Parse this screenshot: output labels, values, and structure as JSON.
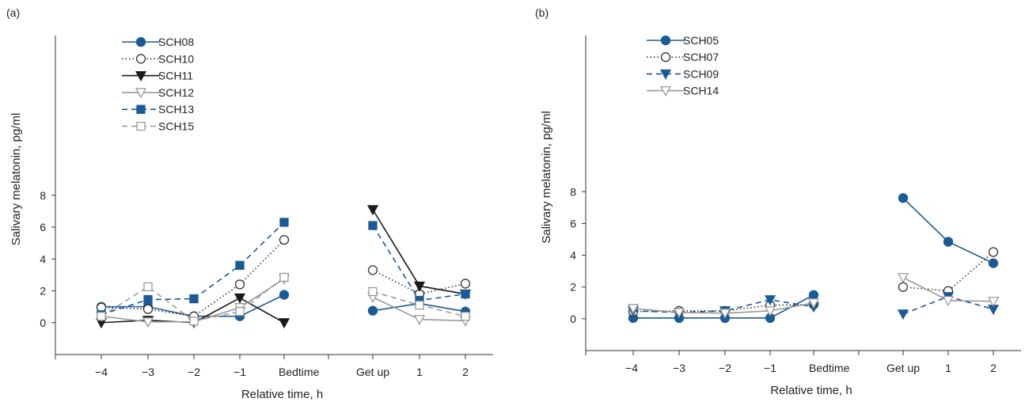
{
  "panels": [
    {
      "label": "(a)",
      "chart_data": {
        "type": "line",
        "xlabel": "Relative time, h",
        "ylabel": "Salivary melatonin, pg/ml",
        "ylim": [
          -2,
          8
        ],
        "yticks": [
          0,
          2,
          4,
          6,
          8
        ],
        "categories": [
          "−4",
          "−3",
          "−2",
          "−1",
          "Bedtime",
          "Get up",
          "1",
          "2"
        ],
        "segments": [
          [
            0,
            4
          ],
          [
            5,
            7
          ]
        ],
        "legend_position": "top-left",
        "series": [
          {
            "name": "SCH08",
            "color": "#1a5a96",
            "dash": "solid",
            "marker": "circle",
            "fill": "filled",
            "values": [
              1.0,
              1.0,
              0.4,
              0.4,
              1.75,
              0.75,
              1.2,
              0.7
            ]
          },
          {
            "name": "SCH10",
            "color": "#333333",
            "dash": "dotted",
            "marker": "circle",
            "fill": "open",
            "values": [
              0.95,
              0.85,
              0.4,
              2.4,
              5.2,
              3.3,
              1.8,
              2.45
            ]
          },
          {
            "name": "SCH11",
            "color": "#1a1a1a",
            "dash": "solid",
            "marker": "triangle-down",
            "fill": "filled",
            "values": [
              0.0,
              0.15,
              0.0,
              1.55,
              0.0,
              7.1,
              2.3,
              1.8
            ]
          },
          {
            "name": "SCH12",
            "color": "#9a9a9a",
            "dash": "solid",
            "marker": "triangle-down",
            "fill": "open",
            "values": [
              0.4,
              0.05,
              0.05,
              0.95,
              2.75,
              1.6,
              0.2,
              0.12
            ]
          },
          {
            "name": "SCH13",
            "color": "#1a5a96",
            "dash": "dashed",
            "marker": "square",
            "fill": "filled",
            "values": [
              0.5,
              1.45,
              1.5,
              3.6,
              6.3,
              6.1,
              1.4,
              1.8
            ]
          },
          {
            "name": "SCH15",
            "color": "#9a9a9a",
            "dash": "dashed",
            "marker": "square",
            "fill": "open",
            "values": [
              0.4,
              2.25,
              0.1,
              0.7,
              2.85,
              1.95,
              1.1,
              0.4
            ]
          }
        ]
      }
    },
    {
      "label": "(b)",
      "chart_data": {
        "type": "line",
        "xlabel": "Relative time, h",
        "ylabel": "Salivary melatonin, pg/ml",
        "ylim": [
          -2,
          8
        ],
        "yticks": [
          0,
          2,
          4,
          6,
          8
        ],
        "categories": [
          "−4",
          "−3",
          "−2",
          "−1",
          "Bedtime",
          "Get up",
          "1",
          "2"
        ],
        "segments": [
          [
            0,
            4
          ],
          [
            5,
            7
          ]
        ],
        "legend_position": "top-left",
        "series": [
          {
            "name": "SCH05",
            "color": "#1a5a96",
            "dash": "solid",
            "marker": "circle",
            "fill": "filled",
            "values": [
              0.05,
              0.05,
              0.05,
              0.05,
              1.5,
              7.6,
              4.85,
              3.5
            ]
          },
          {
            "name": "SCH07",
            "color": "#333333",
            "dash": "dotted",
            "marker": "circle",
            "fill": "open",
            "values": [
              0.45,
              0.5,
              0.5,
              0.85,
              0.9,
              2.0,
              1.75,
              4.2
            ]
          },
          {
            "name": "SCH09",
            "color": "#1a5a96",
            "dash": "dashed",
            "marker": "triangle-down",
            "fill": "filled",
            "values": [
              0.5,
              0.4,
              0.5,
              1.2,
              0.75,
              0.3,
              1.4,
              0.6
            ]
          },
          {
            "name": "SCH14",
            "color": "#9a9a9a",
            "dash": "solid",
            "marker": "triangle-down",
            "fill": "open",
            "values": [
              0.65,
              0.4,
              0.35,
              0.5,
              1.0,
              2.6,
              1.15,
              1.1
            ]
          }
        ]
      }
    }
  ]
}
